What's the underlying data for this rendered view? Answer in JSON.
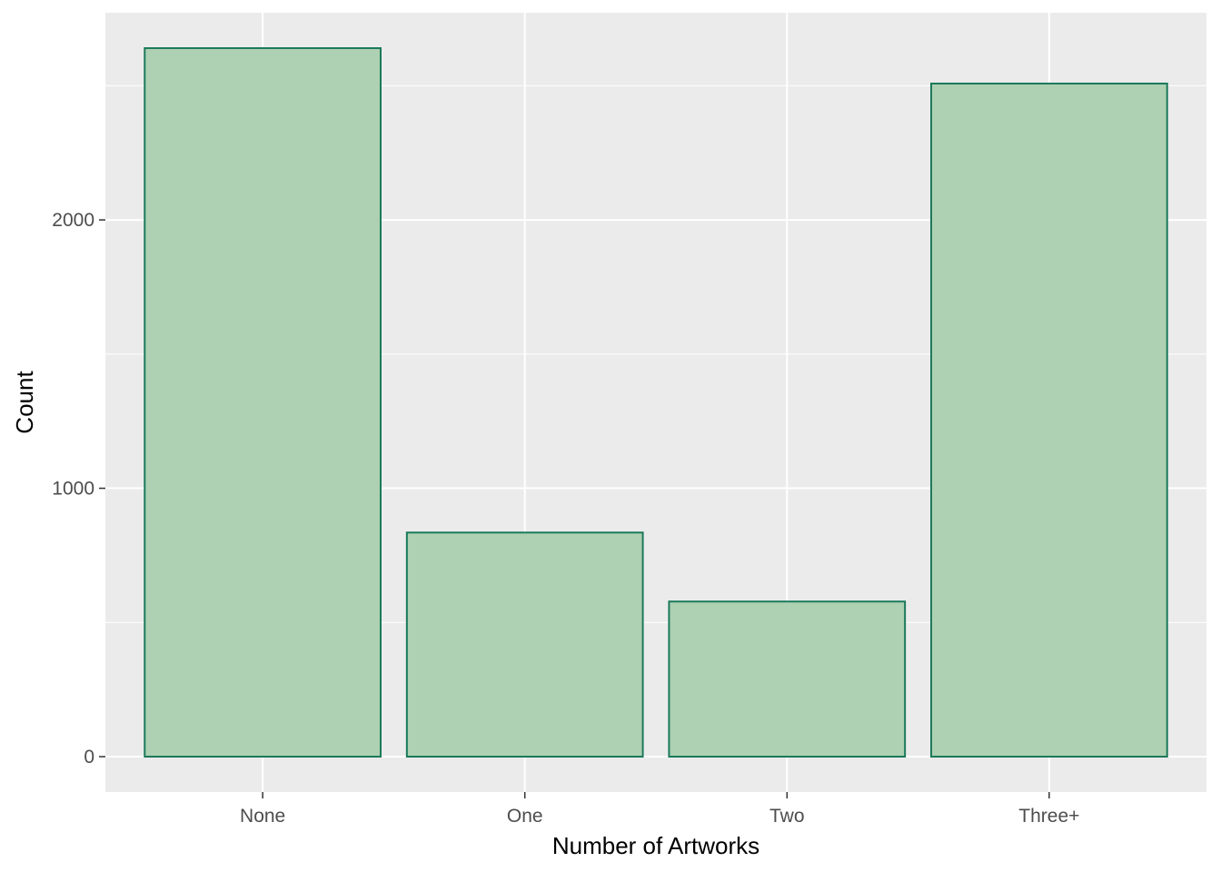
{
  "chart_data": {
    "type": "bar",
    "categories": [
      "None",
      "One",
      "Two",
      "Three+"
    ],
    "values": [
      2640,
      835,
      578,
      2508
    ],
    "xlabel": "Number of Artworks",
    "ylabel": "Count",
    "ylim": [
      -132,
      2772
    ],
    "yticks": [
      0,
      1000,
      2000
    ],
    "ytick_labels": [
      "0",
      "1000",
      "2000"
    ],
    "grid": true,
    "colors": {
      "bar_fill": "#aed0b3",
      "bar_stroke": "#1b7a5a",
      "panel_background": "#ebebeb",
      "grid": "#ffffff"
    }
  }
}
